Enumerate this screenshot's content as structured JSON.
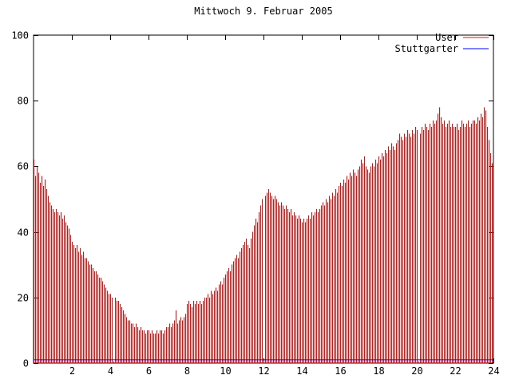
{
  "title": "Mittwoch 9. Februar 2005",
  "chart_data": {
    "type": "bar",
    "style": "gnuplot-impulses",
    "title": "Mittwoch 9. Februar 2005",
    "xlabel": "",
    "ylabel": "",
    "xlim": [
      0,
      24
    ],
    "ylim": [
      0,
      100
    ],
    "x_ticks": [
      2,
      4,
      6,
      8,
      10,
      12,
      14,
      16,
      18,
      20,
      22,
      24
    ],
    "y_ticks": [
      0,
      20,
      40,
      60,
      80,
      100
    ],
    "grid": false,
    "legend_position": "top-right-inside",
    "background": "#ffffff",
    "axis_color": "#000000",
    "series": [
      {
        "name": "User",
        "type": "impulses",
        "color": "#ff0000",
        "x_start": 0,
        "x_step": 0.0833333,
        "values": [
          62,
          57,
          60,
          58,
          55,
          57,
          54,
          56,
          53,
          51,
          49,
          48,
          47,
          46,
          47,
          46,
          45,
          46,
          44,
          45,
          43,
          42,
          41,
          39,
          37,
          36,
          35,
          36,
          34,
          35,
          33,
          34,
          32,
          32,
          31,
          30,
          30,
          29,
          28,
          28,
          27,
          26,
          26,
          25,
          24,
          23,
          22,
          21,
          21,
          20,
          0.5,
          20,
          19,
          19,
          18,
          17,
          16,
          15,
          14,
          13,
          13,
          12,
          12,
          11,
          12,
          11,
          10,
          11,
          10,
          10,
          9,
          10,
          10,
          9,
          10,
          9,
          9,
          10,
          9,
          10,
          10,
          9,
          10,
          11,
          11,
          12,
          11,
          12,
          13,
          16,
          12,
          13,
          14,
          13,
          14,
          15,
          18,
          19,
          18,
          17,
          19,
          18,
          19,
          18,
          19,
          18,
          19,
          20,
          20,
          21,
          20,
          22,
          21,
          22,
          23,
          22,
          24,
          25,
          24,
          26,
          27,
          28,
          29,
          28,
          30,
          31,
          32,
          33,
          32,
          34,
          35,
          36,
          37,
          38,
          36,
          35,
          38,
          40,
          42,
          44,
          43,
          46,
          48,
          50,
          0.5,
          51,
          52,
          53,
          52,
          51,
          50,
          51,
          50,
          49,
          48,
          49,
          48,
          47,
          48,
          47,
          46,
          47,
          45,
          46,
          45,
          44,
          45,
          44,
          43,
          44,
          43,
          44,
          45,
          44,
          46,
          45,
          46,
          47,
          46,
          47,
          48,
          49,
          48,
          50,
          49,
          51,
          50,
          52,
          51,
          53,
          52,
          54,
          55,
          54,
          56,
          55,
          57,
          56,
          58,
          57,
          59,
          58,
          57,
          59,
          60,
          62,
          61,
          63,
          60,
          59,
          58,
          60,
          61,
          60,
          62,
          61,
          63,
          62,
          64,
          63,
          65,
          64,
          66,
          65,
          67,
          66,
          65,
          67,
          68,
          70,
          69,
          68,
          70,
          69,
          71,
          70,
          69,
          71,
          70,
          72,
          71,
          0.5,
          70,
          72,
          71,
          73,
          72,
          71,
          73,
          72,
          74,
          73,
          74,
          76,
          78,
          75,
          73,
          74,
          72,
          73,
          74,
          72,
          73,
          72,
          72,
          73,
          71,
          72,
          74,
          73,
          72,
          73,
          74,
          72,
          73,
          74,
          74,
          73,
          75,
          74,
          76,
          75,
          78,
          77,
          72,
          68,
          64,
          61
        ]
      },
      {
        "name": "Stuttgarter",
        "type": "line",
        "color": "#0000ff",
        "x": [
          0,
          24
        ],
        "values": [
          1,
          1
        ]
      }
    ]
  }
}
